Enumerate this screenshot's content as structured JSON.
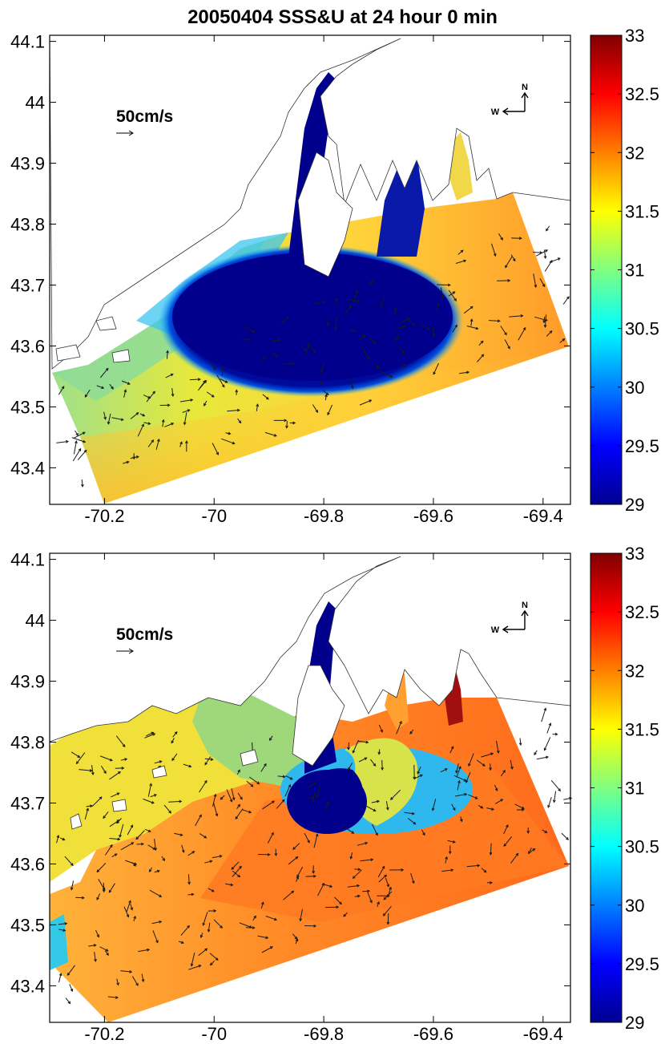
{
  "title": "20050404 SSS&U at 24  hour  0  min",
  "chart_data": [
    {
      "type": "heatmap",
      "panel": "top",
      "title": "20050404 SSS&U at 24  hour  0  min",
      "x_ticks": [
        -70.2,
        -70,
        -69.8,
        -69.6,
        -69.4
      ],
      "x_tick_labels": [
        "-70.2",
        "-70",
        "-69.8",
        "-69.6",
        "-69.4"
      ],
      "y_ticks": [
        43.4,
        43.5,
        43.6,
        43.7,
        43.8,
        43.9,
        44,
        44.1
      ],
      "y_tick_labels": [
        "43.4",
        "43.5",
        "43.6",
        "43.7",
        "43.8",
        "43.9",
        "44",
        "44.1"
      ],
      "xlim": [
        -70.3,
        -69.35
      ],
      "ylim": [
        43.34,
        44.11
      ],
      "colorbar": {
        "min": 29,
        "max": 33,
        "ticks": [
          "33",
          "32.5",
          "32",
          "31.5",
          "31",
          "30.5",
          "30",
          "29.5",
          "29"
        ]
      },
      "vector_scale_label": "50cm/s",
      "compass": {
        "north": "N",
        "west": "W"
      },
      "plume": {
        "center_lon": -69.8,
        "center_lat": 43.68,
        "salinity_min": 29,
        "ambient_salinity": 31.8
      }
    },
    {
      "type": "heatmap",
      "panel": "bottom",
      "title": "",
      "x_ticks": [
        -70.2,
        -70,
        -69.8,
        -69.6,
        -69.4
      ],
      "x_tick_labels": [
        "-70.2",
        "-70",
        "-69.8",
        "-69.6",
        "-69.4"
      ],
      "y_ticks": [
        43.4,
        43.5,
        43.6,
        43.7,
        43.8,
        43.9,
        44,
        44.1
      ],
      "y_tick_labels": [
        "43.4",
        "43.5",
        "43.6",
        "43.7",
        "43.8",
        "43.9",
        "44",
        "44.1"
      ],
      "xlim": [
        -70.3,
        -69.35
      ],
      "ylim": [
        43.34,
        44.11
      ],
      "colorbar": {
        "min": 29,
        "max": 33,
        "ticks": [
          "33",
          "32.5",
          "32",
          "31.5",
          "31",
          "30.5",
          "30",
          "29.5",
          "29"
        ]
      },
      "vector_scale_label": "50cm/s",
      "compass": {
        "north": "N",
        "west": "W"
      },
      "plume": {
        "center_lon": -69.77,
        "center_lat": 43.7,
        "salinity_min": 29,
        "ambient_salinity": 32.2
      }
    }
  ]
}
